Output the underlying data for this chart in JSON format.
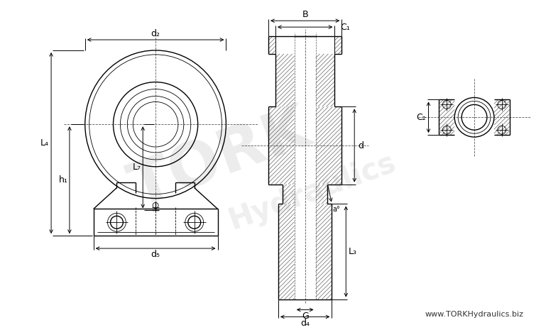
{
  "bg_color": "#ffffff",
  "line_color": "#000000",
  "watermark_color": "#d0d0d0",
  "website": "www.TORKHydraulics.biz",
  "figsize": [
    7.62,
    4.65
  ],
  "dpi": 100,
  "labels": {
    "d2": "d₂",
    "d5": "d₅",
    "d4": "d₄",
    "L4": "L₄",
    "L7": "L₇",
    "h1": "h₁",
    "B": "B",
    "C1": "C₁",
    "d": "d",
    "a": "a°",
    "L3": "L₃",
    "G": "G",
    "C2": "C₂"
  }
}
